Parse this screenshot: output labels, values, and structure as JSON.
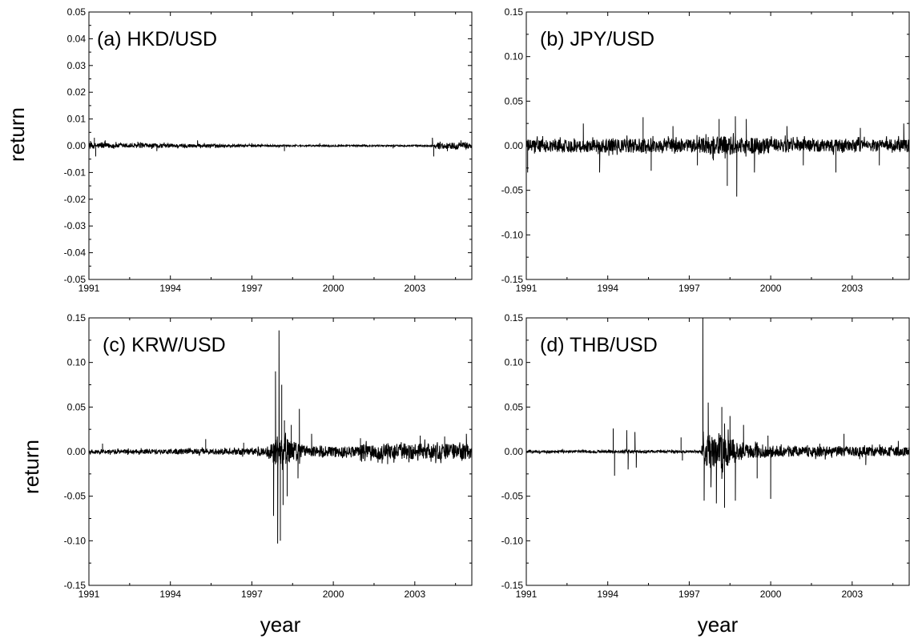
{
  "figure": {
    "ylabel": "return",
    "xlabel": "year"
  },
  "chart_data": [
    {
      "type": "line",
      "title": "(a) HKD/USD",
      "xlabel": "",
      "ylabel": "return",
      "xlim": [
        1991,
        2005.1
      ],
      "ylim": [
        -0.05,
        0.05
      ],
      "x_ticks": [
        "1991",
        "1994",
        "1997",
        "2000",
        "2003"
      ],
      "y_ticks": [
        "0.05",
        "0.04",
        "0.03",
        "0.02",
        "0.01",
        "0.00",
        "-0.01",
        "-0.02",
        "-0.03",
        "-0.04",
        "-0.05"
      ],
      "y_tick_values": [
        0.05,
        0.04,
        0.03,
        0.02,
        0.01,
        0.0,
        -0.01,
        -0.02,
        -0.03,
        -0.04,
        -0.05
      ],
      "baseline_noise": [
        [
          1991,
          0.0012
        ],
        [
          1992,
          0.0009
        ],
        [
          1995,
          0.0007
        ],
        [
          1997,
          0.0004
        ],
        [
          1999,
          0.0003
        ],
        [
          2003.7,
          0.0003
        ],
        [
          2003.8,
          0.0012
        ],
        [
          2005.1,
          0.0012
        ]
      ],
      "spikes": [
        [
          1991.2,
          0.003
        ],
        [
          1991.25,
          -0.004
        ],
        [
          1991.6,
          0.002
        ],
        [
          1992.8,
          0.0015
        ],
        [
          1993.5,
          -0.002
        ],
        [
          1995.0,
          0.002
        ],
        [
          1997.0,
          0.001
        ],
        [
          1998.2,
          -0.002
        ],
        [
          1999.5,
          0.001
        ],
        [
          2002.2,
          -0.001
        ],
        [
          2003.65,
          0.003
        ],
        [
          2003.7,
          -0.004
        ],
        [
          2004.2,
          -0.002
        ],
        [
          2004.7,
          0.002
        ]
      ]
    },
    {
      "type": "line",
      "title": "(b) JPY/USD",
      "xlabel": "",
      "ylabel": "",
      "xlim": [
        1991,
        2005.1
      ],
      "ylim": [
        -0.15,
        0.15
      ],
      "x_ticks": [
        "1991",
        "1994",
        "1997",
        "2000",
        "2003"
      ],
      "y_ticks": [
        "0.15",
        "0.10",
        "0.05",
        "0.00",
        "-0.05",
        "-0.10",
        "-0.15"
      ],
      "y_tick_values": [
        0.15,
        0.1,
        0.05,
        0.0,
        -0.05,
        -0.1,
        -0.15
      ],
      "baseline_noise": [
        [
          1991,
          0.007
        ],
        [
          1993,
          0.007
        ],
        [
          1995,
          0.008
        ],
        [
          1997,
          0.007
        ],
        [
          1998,
          0.011
        ],
        [
          1999.5,
          0.009
        ],
        [
          2001,
          0.007
        ],
        [
          2005.1,
          0.007
        ]
      ],
      "spikes": [
        [
          1991.05,
          -0.03
        ],
        [
          1993.1,
          0.025
        ],
        [
          1993.7,
          -0.03
        ],
        [
          1995.3,
          0.032
        ],
        [
          1995.6,
          -0.028
        ],
        [
          1996.4,
          0.022
        ],
        [
          1997.3,
          -0.022
        ],
        [
          1998.1,
          0.03
        ],
        [
          1998.4,
          -0.045
        ],
        [
          1998.7,
          0.033
        ],
        [
          1998.75,
          -0.057
        ],
        [
          1999.1,
          0.03
        ],
        [
          1999.4,
          -0.03
        ],
        [
          2000.6,
          0.022
        ],
        [
          2001.2,
          -0.022
        ],
        [
          2002.4,
          -0.03
        ],
        [
          2003.3,
          0.02
        ],
        [
          2004.0,
          -0.022
        ],
        [
          2004.9,
          0.025
        ]
      ]
    },
    {
      "type": "line",
      "title": "(c) KRW/USD",
      "xlabel": "year",
      "ylabel": "return",
      "xlim": [
        1991,
        2005.1
      ],
      "ylim": [
        -0.15,
        0.15
      ],
      "x_ticks": [
        "1991",
        "1994",
        "1997",
        "2000",
        "2003"
      ],
      "y_ticks": [
        "0.15",
        "0.10",
        "0.05",
        "0.00",
        "-0.05",
        "-0.10",
        "-0.15"
      ],
      "y_tick_values": [
        0.15,
        0.1,
        0.05,
        0.0,
        -0.05,
        -0.1,
        -0.15
      ],
      "baseline_noise": [
        [
          1991,
          0.002
        ],
        [
          1995,
          0.003
        ],
        [
          1997.5,
          0.004
        ],
        [
          1997.9,
          0.018
        ],
        [
          1998.3,
          0.015
        ],
        [
          1999,
          0.006
        ],
        [
          2000.8,
          0.006
        ],
        [
          2001.2,
          0.009
        ],
        [
          2005.1,
          0.009
        ]
      ],
      "spikes": [
        [
          1991.5,
          0.009
        ],
        [
          1995.3,
          0.014
        ],
        [
          1996.7,
          0.01
        ],
        [
          1997.8,
          -0.072
        ],
        [
          1997.87,
          0.09
        ],
        [
          1997.95,
          -0.103
        ],
        [
          1998.0,
          0.136
        ],
        [
          1998.05,
          -0.1
        ],
        [
          1998.1,
          0.075
        ],
        [
          1998.15,
          -0.06
        ],
        [
          1998.2,
          0.035
        ],
        [
          1998.3,
          -0.05
        ],
        [
          1998.45,
          0.03
        ],
        [
          1998.7,
          -0.03
        ],
        [
          1998.75,
          0.048
        ],
        [
          1999.2,
          0.02
        ],
        [
          2001.0,
          0.015
        ],
        [
          2002.0,
          -0.014
        ],
        [
          2003.2,
          0.018
        ],
        [
          2004.1,
          0.017
        ],
        [
          2004.9,
          0.02
        ]
      ]
    },
    {
      "type": "line",
      "title": "(d) THB/USD",
      "xlabel": "year",
      "ylabel": "",
      "xlim": [
        1991,
        2005.1
      ],
      "ylim": [
        -0.15,
        0.15
      ],
      "x_ticks": [
        "1991",
        "1994",
        "1997",
        "2000",
        "2003"
      ],
      "y_ticks": [
        "0.15",
        "0.10",
        "0.05",
        "0.00",
        "-0.05",
        "-0.10",
        "-0.15"
      ],
      "y_tick_values": [
        0.15,
        0.1,
        0.05,
        0.0,
        -0.05,
        -0.1,
        -0.15
      ],
      "baseline_noise": [
        [
          1991,
          0.0015
        ],
        [
          1997.45,
          0.0015
        ],
        [
          1997.5,
          0.018
        ],
        [
          1998.3,
          0.02
        ],
        [
          1999,
          0.008
        ],
        [
          2000.5,
          0.006
        ],
        [
          2005.1,
          0.005
        ]
      ],
      "spikes": [
        [
          1994.2,
          0.026
        ],
        [
          1994.25,
          -0.027
        ],
        [
          1994.7,
          0.024
        ],
        [
          1994.75,
          -0.02
        ],
        [
          1995.0,
          0.022
        ],
        [
          1995.05,
          -0.018
        ],
        [
          1996.7,
          0.016
        ],
        [
          1996.75,
          -0.01
        ],
        [
          1997.5,
          0.15
        ],
        [
          1997.55,
          -0.055
        ],
        [
          1997.7,
          0.055
        ],
        [
          1997.8,
          -0.04
        ],
        [
          1998.0,
          -0.058
        ],
        [
          1998.2,
          0.05
        ],
        [
          1998.3,
          -0.063
        ],
        [
          1998.5,
          0.04
        ],
        [
          1998.7,
          -0.055
        ],
        [
          1999.0,
          0.03
        ],
        [
          1999.5,
          -0.03
        ],
        [
          1999.9,
          0.018
        ],
        [
          2000.0,
          -0.053
        ],
        [
          2002.7,
          0.02
        ],
        [
          2003.5,
          -0.015
        ],
        [
          2004.7,
          0.012
        ]
      ]
    }
  ]
}
